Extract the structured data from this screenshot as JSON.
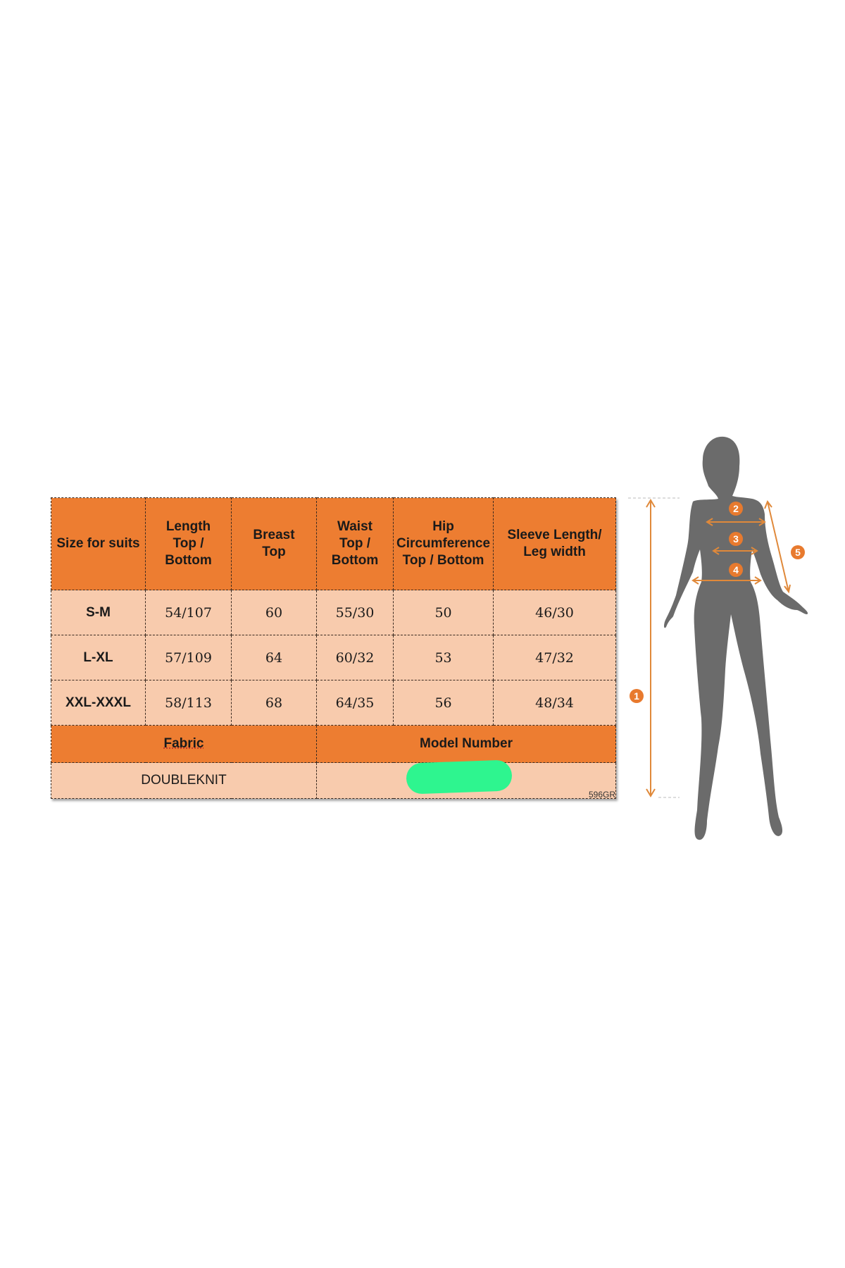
{
  "table": {
    "headers": [
      "Size for suits",
      "Length\nTop /\nBottom",
      "Breast\nTop",
      "Waist\nTop /\nBottom",
      "Hip\nCircumference\nTop / Bottom",
      "Sleeve Length/\nLeg width"
    ],
    "rows": [
      [
        "S-M",
        "54/107",
        "60",
        "55/30",
        "50",
        "46/30"
      ],
      [
        "L-XL",
        "57/109",
        "64",
        "60/32",
        "53",
        "47/32"
      ],
      [
        "XXL-XXXL",
        "58/113",
        "68",
        "64/35",
        "56",
        "48/34"
      ]
    ],
    "fabric_label": "Fabric",
    "model_number_label": "Model Number",
    "fabric_value": "DOUBLEKNIT"
  },
  "code": "596GR",
  "figure": {
    "markers": [
      "1",
      "2",
      "3",
      "4",
      "5"
    ]
  },
  "colors": {
    "header": "#ed7d31",
    "cell": "#f8cbad",
    "redaction": "#2ef58f",
    "silhouette": "#6b6b6b",
    "marker": "#e87a2e"
  }
}
